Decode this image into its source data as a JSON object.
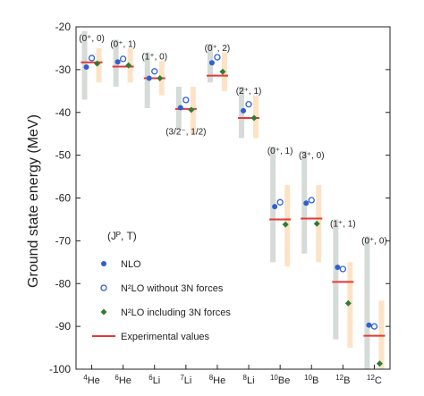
{
  "chart_data": {
    "type": "scatter",
    "ylabel": "Ground state energy (MeV)",
    "xlabel": "",
    "ylim": [
      -100,
      -20
    ],
    "yticks": [
      -20,
      -30,
      -40,
      -50,
      -60,
      -70,
      -80,
      -90,
      -100
    ],
    "grid": false,
    "legend_position": "bottom-left",
    "legend_title": "(Jᴾ, T)",
    "categories": [
      {
        "id": "4He",
        "mass": "4",
        "element": "He"
      },
      {
        "id": "6He",
        "mass": "6",
        "element": "He"
      },
      {
        "id": "6Li",
        "mass": "6",
        "element": "Li"
      },
      {
        "id": "7Li",
        "mass": "7",
        "element": "Li"
      },
      {
        "id": "8He",
        "mass": "8",
        "element": "He"
      },
      {
        "id": "8Li",
        "mass": "8",
        "element": "Li"
      },
      {
        "id": "10Be",
        "mass": "10",
        "element": "Be"
      },
      {
        "id": "10B",
        "mass": "10",
        "element": "B"
      },
      {
        "id": "12B",
        "mass": "12",
        "element": "B"
      },
      {
        "id": "12C",
        "mass": "12",
        "element": "C"
      }
    ],
    "state_labels": [
      "(0⁺, 0)",
      "(0⁺, 1)",
      "(1⁺, 0)",
      "(3/2⁻, 1/2)",
      "(0⁺, 2)",
      "(2⁺, 1)",
      "(0⁺, 1)",
      "(3⁺, 0)",
      "(1⁺, 1)",
      "(0⁺, 0)"
    ],
    "experimental": [
      -28.3,
      -29.3,
      -32.0,
      -39.2,
      -31.4,
      -41.3,
      -65.0,
      -64.8,
      -79.6,
      -92.2
    ],
    "series": [
      {
        "name": "NLO",
        "marker": "filled-circle",
        "color": "#2f5fd0",
        "values": [
          -29.4,
          -28.2,
          -32.0,
          -38.9,
          -28.4,
          -39.6,
          -62.0,
          -61.2,
          -76.2,
          -89.7
        ],
        "band": [
          [
            -37,
            -21
          ],
          [
            -34,
            -23
          ],
          [
            -39,
            -26
          ],
          [
            -44,
            -34
          ],
          [
            -33,
            -24
          ],
          [
            -46,
            -34
          ],
          [
            -75,
            -48
          ],
          [
            -73,
            -49
          ],
          [
            -93,
            -65
          ],
          [
            -101,
            -69
          ]
        ],
        "band_color": "#d5dbd7"
      },
      {
        "name": "N²LO without 3N forces",
        "marker": "open-circle",
        "color": "#2f5fd0",
        "values": [
          -27.3,
          -27.5,
          -30.4,
          -37.1,
          -27.1,
          -38.1,
          -61.0,
          -60.5,
          -76.6,
          -90.0
        ],
        "band": null,
        "band_color": null
      },
      {
        "name": "N²LO including 3N forces",
        "marker": "filled-diamond",
        "color": "#2e7d32",
        "values": [
          -28.6,
          -29.0,
          -32.0,
          -39.4,
          -30.5,
          -41.3,
          -66.2,
          -66.0,
          -84.6,
          -98.7
        ],
        "band": [
          [
            -33,
            -25
          ],
          [
            -33,
            -25
          ],
          [
            -36,
            -28
          ],
          [
            -45,
            -34
          ],
          [
            -35,
            -26
          ],
          [
            -46,
            -36
          ],
          [
            -76,
            -57
          ],
          [
            -75,
            -57
          ],
          [
            -95,
            -75
          ],
          [
            -101,
            -84
          ]
        ],
        "band_color": "#fde3c6"
      }
    ],
    "experimental_series": {
      "name": "Experimental values",
      "color": "#e53935"
    }
  }
}
